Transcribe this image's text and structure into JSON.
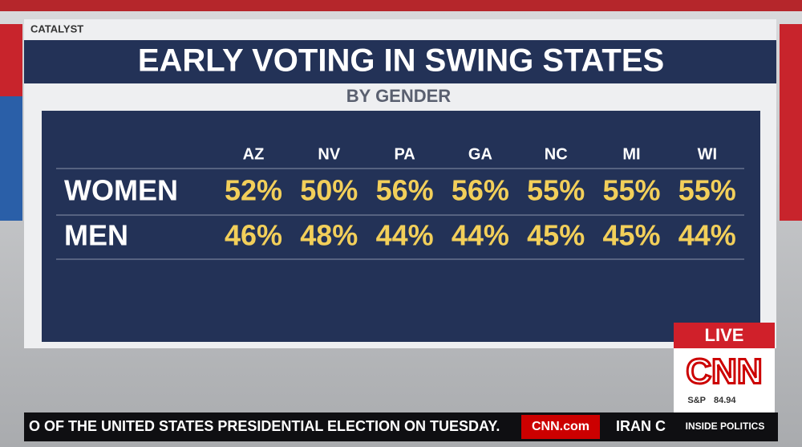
{
  "header": {
    "brand": "CATALYST",
    "title": "EARLY VOTING IN SWING STATES",
    "subtitle": "BY GENDER"
  },
  "table": {
    "columns": [
      "AZ",
      "NV",
      "PA",
      "GA",
      "NC",
      "MI",
      "WI"
    ],
    "rows": [
      {
        "label": "WOMEN",
        "cells": [
          "52%",
          "50%",
          "56%",
          "56%",
          "55%",
          "55%",
          "55%"
        ]
      },
      {
        "label": "MEN",
        "cells": [
          "46%",
          "48%",
          "44%",
          "44%",
          "45%",
          "45%",
          "44%"
        ]
      }
    ]
  },
  "badge": {
    "live": "LIVE",
    "logo": "CNN",
    "index": "S&P",
    "index_value": "84.94"
  },
  "crawl": {
    "text": "O OF THE UNITED STATES PRESIDENTIAL ELECTION ON TUESDAY.",
    "site": "CNN.com",
    "next": "IRAN C",
    "show": "INSIDE POLITICS"
  }
}
